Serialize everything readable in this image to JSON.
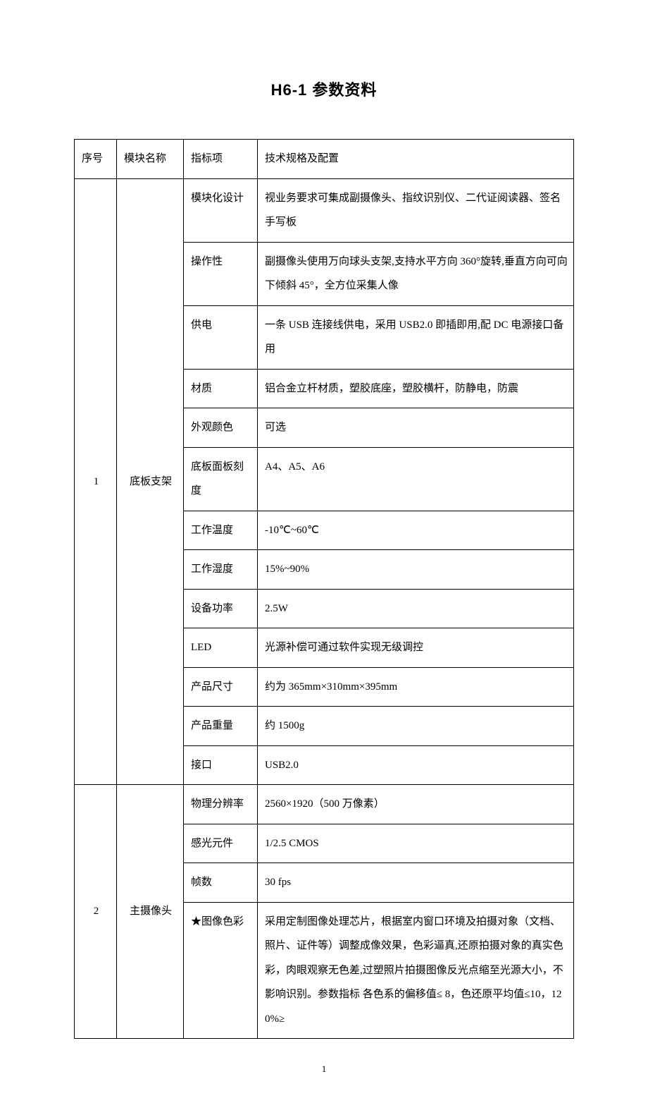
{
  "title": "H6-1 参数资料",
  "header": {
    "seq": "序号",
    "module": "模块名称",
    "indicator": "指标项",
    "spec": "技术规格及配置"
  },
  "groups": [
    {
      "seq": "1",
      "module": "底板支架",
      "rows": [
        {
          "indicator": "模块化设计",
          "spec": "视业务要求可集成副摄像头、指纹识别仪、二代证阅读器、签名手写板"
        },
        {
          "indicator": "操作性",
          "spec": "副摄像头使用万向球头支架,支持水平方向 360°旋转,垂直方向可向下倾斜 45°，全方位采集人像"
        },
        {
          "indicator": "供电",
          "spec": "一条 USB 连接线供电，采用 USB2.0 即插即用,配 DC 电源接口备用"
        },
        {
          "indicator": "材质",
          "spec": "铝合金立杆材质，塑胶底座，塑胶横杆，防静电，防震"
        },
        {
          "indicator": "外观颜色",
          "spec": "可选"
        },
        {
          "indicator": "底板面板刻度",
          "spec": "A4、A5、A6"
        },
        {
          "indicator": "工作温度",
          "spec": "-10℃~60℃"
        },
        {
          "indicator": "工作湿度",
          "spec": "15%~90%"
        },
        {
          "indicator": "设备功率",
          "spec": "2.5W"
        },
        {
          "indicator": "LED",
          "spec": "光源补偿可通过软件实现无级调控"
        },
        {
          "indicator": "产品尺寸",
          "spec": "约为 365mm×310mm×395mm"
        },
        {
          "indicator": "产品重量",
          "spec": "约 1500g"
        },
        {
          "indicator": "接口",
          "spec": "USB2.0"
        }
      ]
    },
    {
      "seq": "2",
      "module": "主摄像头",
      "rows": [
        {
          "indicator": "物理分辨率",
          "spec": "2560×1920（500 万像素）"
        },
        {
          "indicator": "感光元件",
          "spec": "1/2.5 CMOS"
        },
        {
          "indicator": "帧数",
          "spec": "30 fps"
        },
        {
          "indicator": "★图像色彩",
          "spec": "采用定制图像处理芯片，根据室内窗口环境及拍摄对象（文档、照片、证件等）调整成像效果，色彩逼真,还原拍摄对象的真实色彩，肉眼观察无色差,过塑照片拍摄图像反光点缩至光源大小，不影响识别。参数指标 各色系的偏移值≤ 8，色还原平均值≤10，120%≥"
        }
      ]
    }
  ],
  "page_number": "1",
  "style": {
    "border_color": "#000000",
    "text_color": "#000000",
    "background_color": "#ffffff",
    "title_fontsize": 22,
    "body_fontsize": 15,
    "line_height": 2.3
  }
}
